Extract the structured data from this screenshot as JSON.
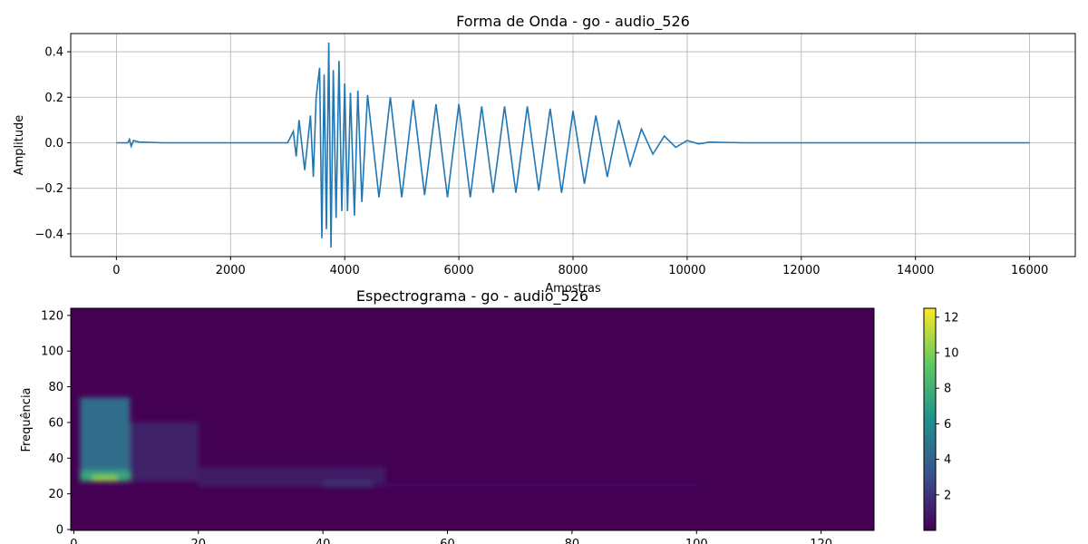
{
  "chart_data": [
    {
      "type": "line",
      "title": "Forma de Onda - go - audio_526",
      "xlabel": "Amostras",
      "ylabel": "Amplitude",
      "xlim": [
        -800,
        16800
      ],
      "ylim": [
        -0.5,
        0.48
      ],
      "xticks": [
        0,
        2000,
        4000,
        6000,
        8000,
        10000,
        12000,
        14000,
        16000
      ],
      "yticks": [
        -0.4,
        -0.2,
        0.0,
        0.2,
        0.4
      ],
      "xtick_labels": [
        "0",
        "2000",
        "4000",
        "6000",
        "8000",
        "10000",
        "12000",
        "14000",
        "16000"
      ],
      "ytick_labels": [
        "−0.4",
        "−0.2",
        "0.0",
        "0.2",
        "0.4"
      ],
      "grid": true,
      "color": "#1f77b4",
      "series": [
        {
          "x": [
            0,
            200,
            230,
            260,
            300,
            400,
            600,
            800,
            3000,
            3100,
            3150,
            3200,
            3300,
            3400,
            3450,
            3500,
            3560,
            3600,
            3640,
            3680,
            3720,
            3760,
            3800,
            3850,
            3900,
            3950,
            4000,
            4050,
            4100,
            4170,
            4230,
            4300,
            4400,
            4600,
            4800,
            5000,
            5200,
            5400,
            5600,
            5800,
            6000,
            6200,
            6400,
            6600,
            6800,
            7000,
            7200,
            7400,
            7600,
            7800,
            8000,
            8200,
            8400,
            8600,
            8800,
            9000,
            9200,
            9400,
            9600,
            9800,
            10000,
            10200,
            10400,
            10600,
            11000,
            12000,
            14000,
            16000
          ],
          "y": [
            0,
            0,
            0.015,
            -0.015,
            0.01,
            0.003,
            0.002,
            0,
            0,
            0.05,
            -0.06,
            0.1,
            -0.12,
            0.12,
            -0.15,
            0.2,
            0.33,
            -0.42,
            0.3,
            -0.38,
            0.44,
            -0.46,
            0.32,
            -0.33,
            0.36,
            -0.3,
            0.26,
            -0.3,
            0.22,
            -0.32,
            0.23,
            -0.26,
            0.21,
            -0.24,
            0.2,
            -0.24,
            0.19,
            -0.23,
            0.17,
            -0.24,
            0.17,
            -0.24,
            0.16,
            -0.22,
            0.16,
            -0.22,
            0.16,
            -0.21,
            0.15,
            -0.22,
            0.14,
            -0.18,
            0.12,
            -0.15,
            0.1,
            -0.1,
            0.06,
            -0.05,
            0.03,
            -0.02,
            0.01,
            -0.005,
            0.003,
            0.002,
            0,
            0,
            0,
            0
          ]
        }
      ]
    },
    {
      "type": "heatmap",
      "title": "Espectrograma - go - audio_526",
      "ylabel": "Frequência",
      "xlim": [
        -0.5,
        128.5
      ],
      "ylim": [
        -0.5,
        124
      ],
      "xticks": [
        0,
        20,
        40,
        60,
        80,
        100,
        120
      ],
      "yticks": [
        0,
        20,
        40,
        60,
        80,
        100,
        120
      ],
      "xtick_labels": [
        "0",
        "20",
        "40",
        "60",
        "80",
        "100",
        "120"
      ],
      "ytick_labels": [
        "0",
        "20",
        "40",
        "60",
        "80",
        "100",
        "120"
      ],
      "colormap": "viridis",
      "colorbar": {
        "min": 0,
        "max": 12.5,
        "ticks": [
          2,
          4,
          6,
          8,
          10,
          12
        ],
        "tick_labels": [
          "2",
          "4",
          "6",
          "8",
          "10",
          "12"
        ]
      },
      "regions": [
        {
          "x": [
            1,
            9
          ],
          "y": [
            27,
            74
          ],
          "value": 4.5
        },
        {
          "x": [
            1,
            9
          ],
          "y": [
            27,
            33
          ],
          "value": 7.5
        },
        {
          "x": [
            3,
            7
          ],
          "y": [
            27,
            30
          ],
          "value": 10.5
        },
        {
          "x": [
            9,
            20
          ],
          "y": [
            27,
            60
          ],
          "value": 1.2
        },
        {
          "x": [
            20,
            50
          ],
          "y": [
            24,
            35
          ],
          "value": 1.0
        },
        {
          "x": [
            40,
            48
          ],
          "y": [
            24,
            27
          ],
          "value": 2.0
        },
        {
          "x": [
            48,
            100
          ],
          "y": [
            24,
            26
          ],
          "value": 0.6
        }
      ]
    }
  ]
}
